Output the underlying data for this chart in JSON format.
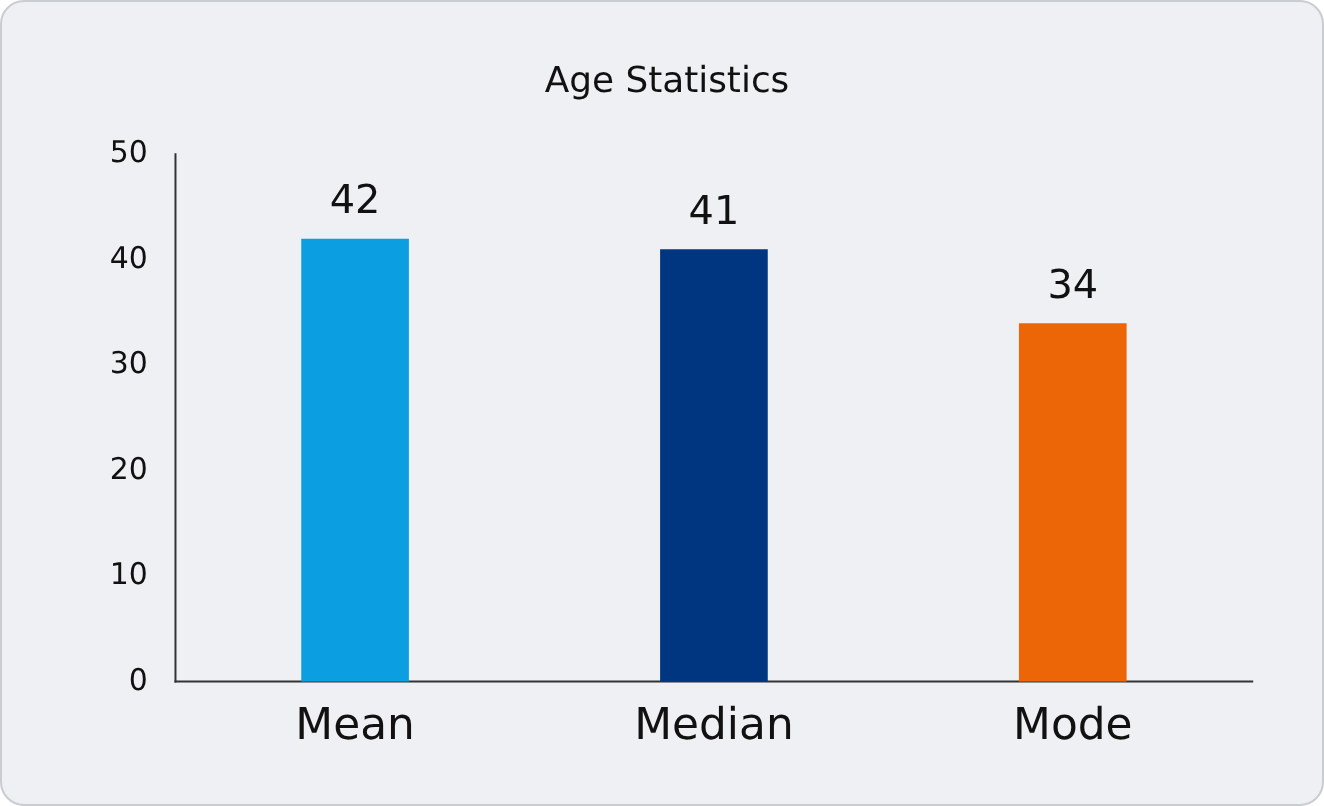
{
  "chart_data": {
    "type": "bar",
    "title": "Age Statistics",
    "categories": [
      "Mean",
      "Median",
      "Mode"
    ],
    "values": [
      42,
      41,
      34
    ],
    "colors": [
      "#0b9fe2",
      "#003580",
      "#ec6608"
    ],
    "ylim": [
      0,
      50
    ],
    "yticks": [
      0,
      10,
      20,
      30,
      40,
      50
    ],
    "grid": false,
    "legend": false,
    "data_labels": true
  }
}
